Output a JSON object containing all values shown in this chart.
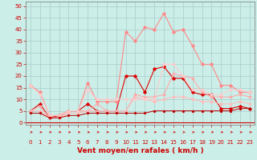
{
  "title": "",
  "xlabel": "Vent moyen/en rafales ( km/h )",
  "bg_color": "#cceee8",
  "grid_color": "#aacccc",
  "x_ticks": [
    0,
    1,
    2,
    3,
    4,
    5,
    6,
    7,
    8,
    9,
    10,
    11,
    12,
    13,
    14,
    15,
    16,
    17,
    18,
    19,
    20,
    21,
    22,
    23
  ],
  "y_ticks": [
    0,
    5,
    10,
    15,
    20,
    25,
    30,
    35,
    40,
    45,
    50
  ],
  "ylim": [
    -1,
    52
  ],
  "xlim": [
    -0.5,
    23.5
  ],
  "series": [
    {
      "color": "#dd0000",
      "lw": 0.8,
      "marker": "D",
      "ms": 1.8,
      "data": [
        [
          0,
          5
        ],
        [
          1,
          8
        ],
        [
          2,
          2
        ],
        [
          3,
          3
        ],
        [
          4,
          5
        ],
        [
          5,
          5
        ],
        [
          6,
          8
        ],
        [
          7,
          5
        ],
        [
          8,
          5
        ],
        [
          9,
          5
        ],
        [
          10,
          20
        ],
        [
          11,
          20
        ],
        [
          12,
          13
        ],
        [
          13,
          23
        ],
        [
          14,
          24
        ],
        [
          15,
          19
        ],
        [
          16,
          19
        ],
        [
          17,
          13
        ],
        [
          18,
          12
        ],
        [
          19,
          12
        ],
        [
          20,
          6
        ],
        [
          21,
          6
        ],
        [
          22,
          7
        ],
        [
          23,
          6
        ]
      ]
    },
    {
      "color": "#ff8888",
      "lw": 0.8,
      "marker": "D",
      "ms": 1.8,
      "data": [
        [
          0,
          16
        ],
        [
          1,
          13
        ],
        [
          2,
          3
        ],
        [
          3,
          3
        ],
        [
          4,
          5
        ],
        [
          5,
          5
        ],
        [
          6,
          17
        ],
        [
          7,
          9
        ],
        [
          8,
          9
        ],
        [
          9,
          9
        ],
        [
          10,
          39
        ],
        [
          11,
          35
        ],
        [
          12,
          41
        ],
        [
          13,
          40
        ],
        [
          14,
          47
        ],
        [
          15,
          39
        ],
        [
          16,
          40
        ],
        [
          17,
          33
        ],
        [
          18,
          25
        ],
        [
          19,
          25
        ],
        [
          20,
          16
        ],
        [
          21,
          16
        ],
        [
          22,
          13
        ],
        [
          23,
          13
        ]
      ]
    },
    {
      "color": "#ffaaaa",
      "lw": 0.8,
      "marker": "D",
      "ms": 1.5,
      "data": [
        [
          0,
          5
        ],
        [
          1,
          7
        ],
        [
          2,
          2
        ],
        [
          3,
          2
        ],
        [
          4,
          5
        ],
        [
          5,
          5
        ],
        [
          6,
          5
        ],
        [
          7,
          8
        ],
        [
          8,
          5
        ],
        [
          9,
          5
        ],
        [
          10,
          5
        ],
        [
          11,
          12
        ],
        [
          12,
          11
        ],
        [
          13,
          11
        ],
        [
          14,
          12
        ],
        [
          15,
          21
        ],
        [
          16,
          20
        ],
        [
          17,
          19
        ],
        [
          18,
          13
        ],
        [
          19,
          11
        ],
        [
          20,
          11
        ],
        [
          21,
          11
        ],
        [
          22,
          12
        ],
        [
          23,
          11
        ]
      ]
    },
    {
      "color": "#ffbbbb",
      "lw": 0.8,
      "marker": "D",
      "ms": 1.5,
      "data": [
        [
          0,
          5
        ],
        [
          1,
          5
        ],
        [
          2,
          2
        ],
        [
          3,
          2
        ],
        [
          4,
          4
        ],
        [
          5,
          4
        ],
        [
          6,
          5
        ],
        [
          7,
          5
        ],
        [
          8,
          5
        ],
        [
          9,
          5
        ],
        [
          10,
          5
        ],
        [
          11,
          11
        ],
        [
          12,
          10
        ],
        [
          13,
          9
        ],
        [
          14,
          10
        ],
        [
          15,
          11
        ],
        [
          16,
          11
        ],
        [
          17,
          10
        ],
        [
          18,
          9
        ],
        [
          19,
          9
        ],
        [
          20,
          8
        ],
        [
          21,
          8
        ],
        [
          22,
          9
        ],
        [
          23,
          8
        ]
      ]
    },
    {
      "color": "#ffcccc",
      "lw": 0.8,
      "marker": "D",
      "ms": 1.5,
      "data": [
        [
          0,
          16
        ],
        [
          1,
          12
        ],
        [
          2,
          3
        ],
        [
          3,
          3
        ],
        [
          4,
          5
        ],
        [
          5,
          5
        ],
        [
          6,
          14
        ],
        [
          7,
          10
        ],
        [
          8,
          10
        ],
        [
          9,
          10
        ],
        [
          10,
          10
        ],
        [
          11,
          10
        ],
        [
          12,
          10
        ],
        [
          13,
          10
        ],
        [
          14,
          25
        ],
        [
          15,
          25
        ],
        [
          16,
          20
        ],
        [
          17,
          14
        ],
        [
          18,
          14
        ],
        [
          19,
          12
        ],
        [
          20,
          12
        ],
        [
          21,
          14
        ],
        [
          22,
          14
        ],
        [
          23,
          13
        ]
      ]
    },
    {
      "color": "#bb0000",
      "lw": 0.7,
      "marker": "D",
      "ms": 1.2,
      "data": [
        [
          0,
          4
        ],
        [
          1,
          4
        ],
        [
          2,
          2
        ],
        [
          3,
          2
        ],
        [
          4,
          3
        ],
        [
          5,
          3
        ],
        [
          6,
          4
        ],
        [
          7,
          4
        ],
        [
          8,
          4
        ],
        [
          9,
          4
        ],
        [
          10,
          4
        ],
        [
          11,
          4
        ],
        [
          12,
          4
        ],
        [
          13,
          5
        ],
        [
          14,
          5
        ],
        [
          15,
          5
        ],
        [
          16,
          5
        ],
        [
          17,
          5
        ],
        [
          18,
          5
        ],
        [
          19,
          5
        ],
        [
          20,
          5
        ],
        [
          21,
          5
        ],
        [
          22,
          6
        ],
        [
          23,
          6
        ]
      ]
    }
  ],
  "arrow_color": "#cc0000",
  "xlabel_fontsize": 6.5,
  "tick_fontsize": 5.0
}
